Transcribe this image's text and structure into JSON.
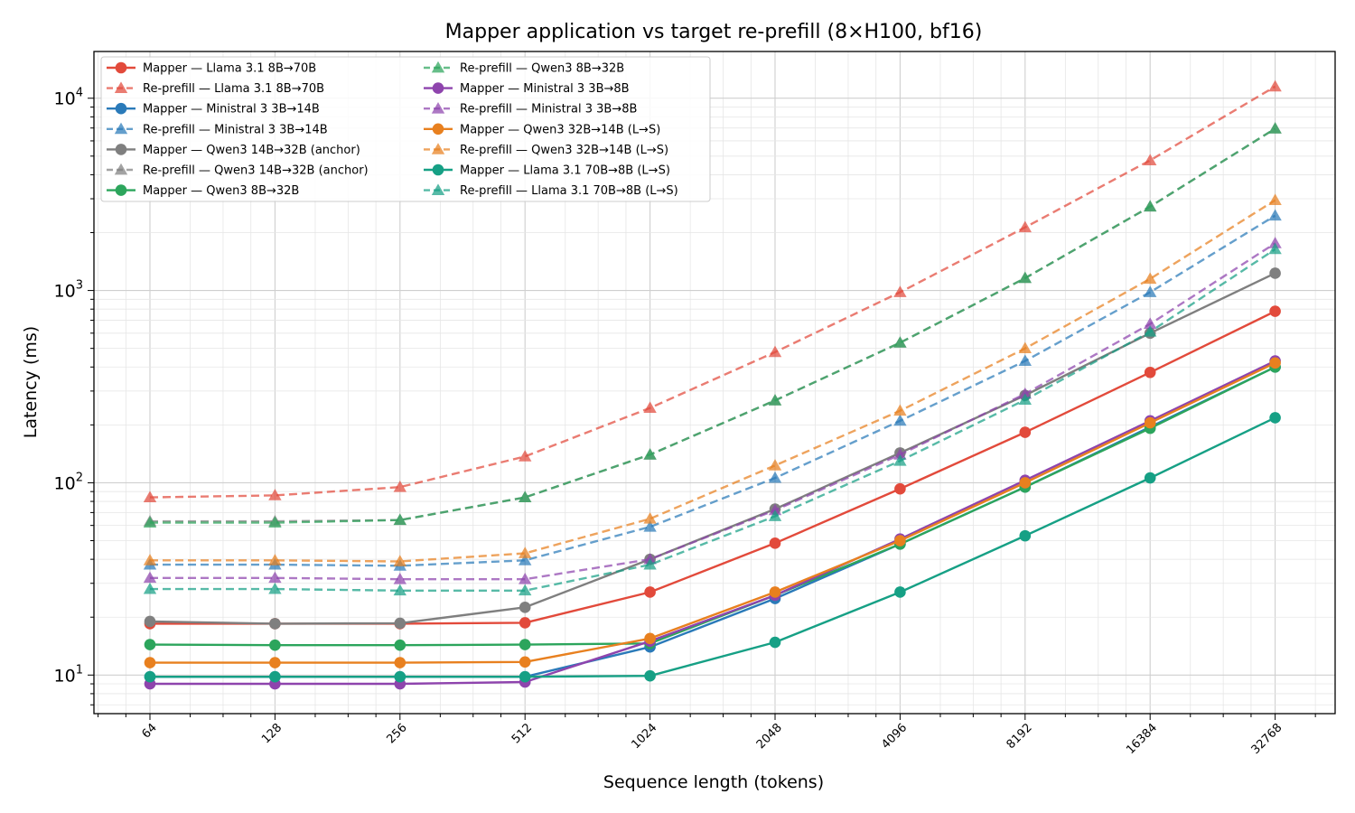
{
  "chart_data": {
    "type": "line",
    "title": "Mapper application vs target re-prefill (8×H100, bf16)",
    "xlabel": "Sequence length (tokens)",
    "ylabel": "Latency (ms)",
    "x_scale": "log2",
    "y_scale": "log10",
    "grid": "major and minor",
    "legend_position": "top-left",
    "legend_columns": 2,
    "x": [
      64,
      128,
      256,
      512,
      1024,
      2048,
      4096,
      8192,
      16384,
      32768
    ],
    "x_tick_labels": [
      "64",
      "128",
      "256",
      "512",
      "1024",
      "2048",
      "4096",
      "8192",
      "16384",
      "32768"
    ],
    "y_ticks": [
      {
        "base": "10",
        "exp": "1",
        "value": 10
      },
      {
        "base": "10",
        "exp": "2",
        "value": 100
      },
      {
        "base": "10",
        "exp": "3",
        "value": 1000
      },
      {
        "base": "10",
        "exp": "4",
        "value": 10000
      }
    ],
    "ylim": [
      6.3,
      17500
    ],
    "series": [
      {
        "name": "Mapper — Llama 3.1 8B→70B",
        "color": "#e24a3b",
        "style": "solid",
        "marker": "circle",
        "values": [
          18.5,
          18.5,
          18.5,
          18.7,
          27,
          48.5,
          93,
          183,
          375,
          780
        ]
      },
      {
        "name": "Re-prefill — Llama 3.1 8B→70B",
        "color": "#e24a3b",
        "style": "dashed",
        "marker": "triangle",
        "values": [
          84,
          86,
          95,
          137,
          245,
          478,
          980,
          2130,
          4750,
          11500
        ]
      },
      {
        "name": "Mapper — Ministral 3 3B→14B",
        "color": "#2a7ab9",
        "style": "solid",
        "marker": "circle",
        "values": [
          9.8,
          9.8,
          9.8,
          9.8,
          14,
          25,
          48,
          95,
          195,
          400
        ]
      },
      {
        "name": "Re-prefill — Ministral 3 3B→14B",
        "color": "#2a7ab9",
        "style": "dashed",
        "marker": "triangle",
        "values": [
          37.5,
          37.5,
          37,
          39.5,
          59,
          106,
          210,
          430,
          980,
          2450
        ]
      },
      {
        "name": "Mapper — Qwen3 14B→32B (anchor)",
        "color": "#7f7f7f",
        "style": "solid",
        "marker": "circle",
        "values": [
          19,
          18.5,
          18.6,
          22.5,
          40,
          73,
          143,
          285,
          600,
          1230
        ]
      },
      {
        "name": "Re-prefill — Qwen3 14B→32B (anchor)",
        "color": "#7f7f7f",
        "style": "dashed",
        "marker": "triangle",
        "values": [
          63,
          63,
          64,
          84,
          140,
          268,
          535,
          1160,
          2730,
          6950
        ]
      },
      {
        "name": "Mapper — Qwen3 8B→32B",
        "color": "#2ca55c",
        "style": "solid",
        "marker": "circle",
        "values": [
          14.4,
          14.3,
          14.3,
          14.4,
          14.6,
          26,
          48,
          95,
          192,
          400
        ]
      },
      {
        "name": "Re-prefill — Qwen3 8B→32B",
        "color": "#2ca55c",
        "style": "dashed",
        "marker": "triangle",
        "values": [
          62,
          62,
          64,
          84,
          140,
          268,
          535,
          1160,
          2730,
          6950
        ]
      },
      {
        "name": "Mapper — Ministral 3 3B→8B",
        "color": "#8e44ad",
        "style": "solid",
        "marker": "circle",
        "values": [
          9,
          9,
          9,
          9.2,
          15,
          26,
          51,
          103,
          210,
          430
        ]
      },
      {
        "name": "Re-prefill — Ministral 3 3B→8B",
        "color": "#8e44ad",
        "style": "dashed",
        "marker": "triangle",
        "values": [
          32,
          32,
          31.5,
          31.5,
          40,
          72,
          140,
          290,
          670,
          1760
        ]
      },
      {
        "name": "Mapper — Qwen3 32B→14B (L→S)",
        "color": "#e8801f",
        "style": "solid",
        "marker": "circle",
        "values": [
          11.6,
          11.6,
          11.6,
          11.7,
          15.5,
          27,
          50,
          100,
          205,
          420
        ]
      },
      {
        "name": "Re-prefill — Qwen3 32B→14B (L→S)",
        "color": "#e8801f",
        "style": "dashed",
        "marker": "triangle",
        "values": [
          39.5,
          39.5,
          39,
          43,
          65,
          123,
          237,
          500,
          1150,
          2950
        ]
      },
      {
        "name": "Mapper — Llama 3.1 70B→8B (L→S)",
        "color": "#16a085",
        "style": "solid",
        "marker": "circle",
        "values": [
          9.8,
          9.8,
          9.8,
          9.8,
          9.9,
          14.8,
          27,
          53,
          106,
          218
        ]
      },
      {
        "name": "Re-prefill — Llama 3.1 70B→8B (L→S)",
        "color": "#16a085",
        "style": "dashed",
        "marker": "triangle",
        "values": [
          28,
          28,
          27.5,
          27.5,
          37.5,
          67,
          130,
          270,
          610,
          1640
        ]
      }
    ]
  }
}
